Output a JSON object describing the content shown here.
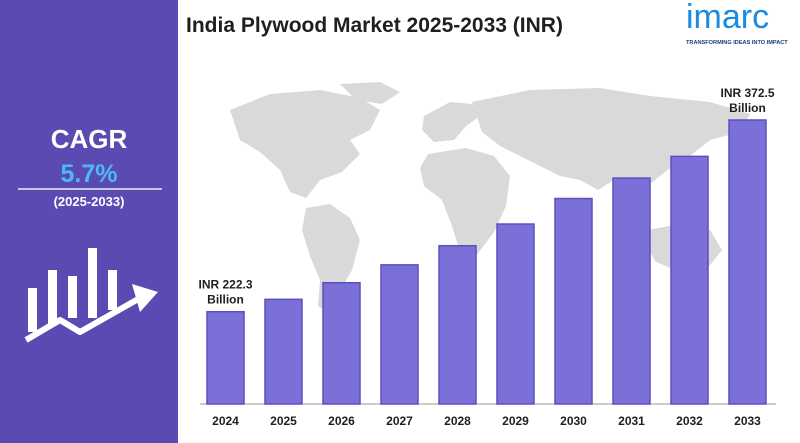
{
  "title": "India Plywood Market 2025-2033 (INR)",
  "logo": {
    "word": "imarc",
    "tagline": "TRANSFORMING IDEAS INTO IMPACT"
  },
  "cagr": {
    "label": "CAGR",
    "value": "5.7%",
    "period": "(2025-2033)"
  },
  "icons": {
    "growth": "bar-chart-growth-arrow-icon",
    "map": "world-map"
  },
  "colors": {
    "sidebar": "#5a4bb3",
    "bar": "#7b6fd8",
    "bar_edge": "#5c4fc0",
    "cagr_value": "#4fb8f0",
    "logo": "#1a8be0"
  },
  "chart_data": {
    "type": "bar",
    "categories": [
      "2024",
      "2025",
      "2026",
      "2027",
      "2028",
      "2029",
      "2030",
      "2031",
      "2032",
      "2033"
    ],
    "values": [
      222.3,
      232,
      245,
      259,
      274,
      291,
      311,
      327,
      344,
      372.5
    ],
    "unit": "INR Billion",
    "annotations": [
      {
        "category": "2024",
        "lines": [
          "INR 222.3",
          "Billion"
        ]
      },
      {
        "category": "2033",
        "lines": [
          "INR 372.5",
          "Billion"
        ]
      }
    ],
    "ylim": [
      150,
      380
    ],
    "grid": false,
    "legend": "none"
  }
}
